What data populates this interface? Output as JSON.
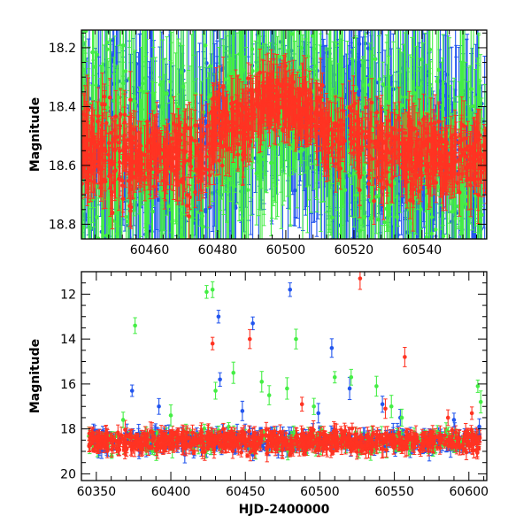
{
  "chart_data": [
    {
      "type": "scatter",
      "title": "",
      "xlabel": "",
      "ylabel": "Magnitude",
      "xlim": [
        60440,
        60559
      ],
      "ylim": [
        18.85,
        18.14
      ],
      "y_inverted": true,
      "xticks": [
        60460,
        60480,
        60500,
        60520,
        60540
      ],
      "yticks": [
        18.2,
        18.4,
        18.6,
        18.8
      ],
      "error_bars": true,
      "legend": "none",
      "grid": false,
      "series": [
        {
          "color": "#2255ee",
          "sample_count": 700
        },
        {
          "color": "#44ee44",
          "sample_count": 650
        },
        {
          "color": "#ff3322",
          "sample_count": 1000
        }
      ],
      "segments": [
        {
          "x": [
            60440,
            60446
          ],
          "y_center": 18.57,
          "scatter": 0.1
        },
        {
          "x": [
            60446,
            60455
          ],
          "y_center": 18.55,
          "scatter": 0.13
        },
        {
          "x": [
            60455,
            60469
          ],
          "y_center": 18.57,
          "scatter": 0.07
        },
        {
          "x": [
            60469,
            60478
          ],
          "y_center": 18.56,
          "scatter": 0.1
        },
        {
          "x": [
            60478,
            60490
          ],
          "y_center": 18.47,
          "scatter": 0.07
        },
        {
          "x": [
            60490,
            60502
          ],
          "y_center": 18.38,
          "scatter": 0.06
        },
        {
          "x": [
            60502,
            60511
          ],
          "y_center": 18.42,
          "scatter": 0.06
        },
        {
          "x": [
            60511,
            60521
          ],
          "y_center": 18.5,
          "scatter": 0.07
        },
        {
          "x": [
            60521,
            60530
          ],
          "y_center": 18.55,
          "scatter": 0.09
        },
        {
          "x": [
            60530,
            60545
          ],
          "y_center": 18.56,
          "scatter": 0.08
        },
        {
          "x": [
            60545,
            60559
          ],
          "y_center": 18.58,
          "scatter": 0.07
        }
      ]
    },
    {
      "type": "scatter",
      "title": "",
      "xlabel": "HJD-2400000",
      "ylabel": "Magnitude",
      "xlim": [
        60340,
        60612
      ],
      "ylim": [
        20.3,
        11.0
      ],
      "y_inverted": true,
      "xticks": [
        60350,
        60400,
        60450,
        60500,
        60550,
        60600
      ],
      "yticks": [
        12,
        14,
        16,
        18,
        20
      ],
      "error_bars": true,
      "legend": "none",
      "grid": false,
      "baseline": {
        "x": [
          60345,
          60608
        ],
        "y_center": 18.55,
        "scatter": 0.25
      },
      "outliers": {
        "blue": [
          [
            60374,
            16.3
          ],
          [
            60392,
            17.0
          ],
          [
            60432,
            13.0
          ],
          [
            60433,
            15.8
          ],
          [
            60448,
            17.2
          ],
          [
            60455,
            13.3
          ],
          [
            60480,
            11.8
          ],
          [
            60499,
            17.3
          ],
          [
            60508,
            14.4
          ],
          [
            60520,
            16.2
          ],
          [
            60542,
            16.9
          ],
          [
            60554,
            17.5
          ],
          [
            60590,
            17.6
          ],
          [
            60607,
            17.9
          ]
        ],
        "green": [
          [
            60368,
            17.6
          ],
          [
            60376,
            13.4
          ],
          [
            60400,
            17.4
          ],
          [
            60424,
            11.9
          ],
          [
            60428,
            11.8
          ],
          [
            60430,
            16.3
          ],
          [
            60442,
            15.5
          ],
          [
            60461,
            15.9
          ],
          [
            60466,
            16.5
          ],
          [
            60478,
            16.2
          ],
          [
            60484,
            14.0
          ],
          [
            60496,
            17.0
          ],
          [
            60510,
            15.7
          ],
          [
            60521,
            15.7
          ],
          [
            60538,
            16.1
          ],
          [
            60548,
            17.0
          ],
          [
            60555,
            17.5
          ],
          [
            60606,
            16.1
          ],
          [
            60608,
            16.8
          ]
        ],
        "red": [
          [
            60428,
            14.2
          ],
          [
            60453,
            14.0
          ],
          [
            60488,
            16.9
          ],
          [
            60527,
            11.3
          ],
          [
            60544,
            17.1
          ],
          [
            60557,
            14.8
          ],
          [
            60586,
            17.5
          ],
          [
            60602,
            17.3
          ]
        ]
      },
      "series": [
        {
          "color": "#2255ee",
          "sample_count": 430
        },
        {
          "color": "#44ee44",
          "sample_count": 250
        },
        {
          "color": "#ff3322",
          "sample_count": 800
        }
      ]
    }
  ]
}
